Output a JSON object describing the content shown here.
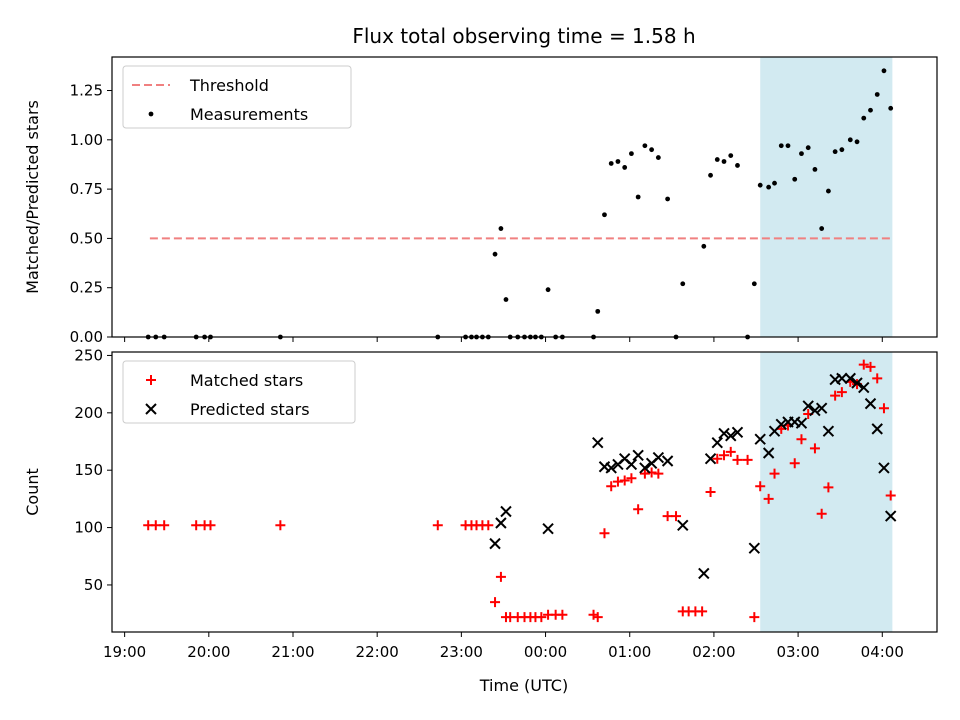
{
  "figure": {
    "title": "Flux total observing time = 1.58 h",
    "xlabel": "Time (UTC)",
    "x_ticks": [
      {
        "value": 19,
        "label": "19:00"
      },
      {
        "value": 20,
        "label": "20:00"
      },
      {
        "value": 21,
        "label": "21:00"
      },
      {
        "value": 22,
        "label": "22:00"
      },
      {
        "value": 23,
        "label": "23:00"
      },
      {
        "value": 24,
        "label": "00:00"
      },
      {
        "value": 25,
        "label": "01:00"
      },
      {
        "value": 26,
        "label": "02:00"
      },
      {
        "value": 27,
        "label": "03:00"
      },
      {
        "value": 28,
        "label": "04:00"
      }
    ],
    "colors": {
      "threshold": "#f08080",
      "highlight": "#add8e6",
      "matched": "#ff0000",
      "predicted": "#000000",
      "measurements": "#000000"
    }
  },
  "chart_data": [
    {
      "type": "scatter",
      "xlabel": "",
      "ylabel": "Matched/Predicted stars",
      "xlim": [
        18.85,
        28.65
      ],
      "ylim": [
        0,
        1.42
      ],
      "y_ticks": [
        {
          "value": 0,
          "label": "0.00"
        },
        {
          "value": 0.25,
          "label": "0.25"
        },
        {
          "value": 0.5,
          "label": "0.50"
        },
        {
          "value": 0.75,
          "label": "0.75"
        },
        {
          "value": 1.0,
          "label": "1.00"
        },
        {
          "value": 1.25,
          "label": "1.25"
        }
      ],
      "highlight_span": [
        26.55,
        28.12
      ],
      "legend": {
        "placement": "upper-left",
        "entries": [
          "Threshold",
          "Measurements"
        ]
      },
      "series": [
        {
          "name": "Threshold",
          "kind": "dashed-line",
          "x": [
            19.3,
            28.12
          ],
          "y": [
            0.5,
            0.5
          ]
        },
        {
          "name": "Measurements",
          "kind": "points",
          "x": [
            19.28,
            19.37,
            19.47,
            19.85,
            19.95,
            20.02,
            20.85,
            22.72,
            23.05,
            23.12,
            23.18,
            23.25,
            23.32,
            23.4,
            23.47,
            23.53,
            23.58,
            23.67,
            23.75,
            23.82,
            23.88,
            23.95,
            24.03,
            24.12,
            24.2,
            24.57,
            24.62,
            24.7,
            24.78,
            24.86,
            24.94,
            25.02,
            25.1,
            25.18,
            25.26,
            25.34,
            25.45,
            25.55,
            25.63,
            25.88,
            25.96,
            26.04,
            26.12,
            26.2,
            26.28,
            26.4,
            26.48,
            26.55,
            26.65,
            26.72,
            26.8,
            26.88,
            26.96,
            27.04,
            27.12,
            27.2,
            27.28,
            27.36,
            27.44,
            27.52,
            27.62,
            27.7,
            27.78,
            27.86,
            27.94,
            28.02,
            28.1
          ],
          "y": [
            0.0,
            0.0,
            0.0,
            0.0,
            0.0,
            0.0,
            0.0,
            0.0,
            0.0,
            0.0,
            0.0,
            0.0,
            0.0,
            0.42,
            0.55,
            0.19,
            0.0,
            0.0,
            0.0,
            0.0,
            0.0,
            0.0,
            0.24,
            0.0,
            0.0,
            0.0,
            0.13,
            0.62,
            0.88,
            0.89,
            0.86,
            0.93,
            0.71,
            0.97,
            0.95,
            0.91,
            0.7,
            0.0,
            0.27,
            0.46,
            0.82,
            0.9,
            0.89,
            0.92,
            0.87,
            0.0,
            0.27,
            0.77,
            0.76,
            0.78,
            0.97,
            0.97,
            0.8,
            0.93,
            0.96,
            0.85,
            0.55,
            0.74,
            0.94,
            0.95,
            1.0,
            0.99,
            1.11,
            1.15,
            1.23,
            1.35,
            1.16
          ]
        }
      ]
    },
    {
      "type": "scatter",
      "xlabel": "Time (UTC)",
      "ylabel": "Count",
      "xlim": [
        18.85,
        28.65
      ],
      "ylim": [
        9,
        253
      ],
      "y_ticks": [
        {
          "value": 50,
          "label": "50"
        },
        {
          "value": 100,
          "label": "100"
        },
        {
          "value": 150,
          "label": "150"
        },
        {
          "value": 200,
          "label": "200"
        },
        {
          "value": 250,
          "label": "250"
        }
      ],
      "highlight_span": [
        26.55,
        28.12
      ],
      "legend": {
        "placement": "upper-left",
        "entries": [
          "Matched stars",
          "Predicted stars"
        ]
      },
      "series": [
        {
          "name": "Matched stars",
          "marker": "plus",
          "x": [
            19.28,
            19.37,
            19.47,
            19.85,
            19.95,
            20.02,
            20.85,
            22.72,
            23.05,
            23.12,
            23.18,
            23.25,
            23.32,
            23.4,
            23.47,
            23.53,
            23.58,
            23.67,
            23.75,
            23.82,
            23.88,
            23.95,
            24.03,
            24.12,
            24.2,
            24.57,
            24.62,
            24.7,
            24.78,
            24.86,
            24.94,
            25.02,
            25.1,
            25.18,
            25.26,
            25.34,
            25.45,
            25.55,
            25.63,
            25.7,
            25.78,
            25.86,
            25.96,
            26.04,
            26.12,
            26.2,
            26.28,
            26.4,
            26.48,
            26.55,
            26.65,
            26.72,
            26.8,
            26.88,
            26.96,
            27.04,
            27.12,
            27.2,
            27.28,
            27.36,
            27.44,
            27.52,
            27.62,
            27.7,
            27.78,
            27.86,
            27.94,
            28.02,
            28.1
          ],
          "y": [
            102,
            102,
            102,
            102,
            102,
            102,
            102,
            102,
            102,
            102,
            102,
            102,
            102,
            35,
            57,
            22,
            22,
            22,
            22,
            22,
            22,
            22,
            24,
            24,
            24,
            24,
            22,
            95,
            136,
            140,
            141,
            143,
            116,
            147,
            148,
            147,
            110,
            110,
            27,
            27,
            27,
            27,
            131,
            160,
            163,
            166,
            159,
            159,
            22,
            136,
            125,
            147,
            186,
            189,
            156,
            177,
            199,
            169,
            112,
            135,
            215,
            218,
            227,
            225,
            242,
            240,
            230,
            204,
            128
          ]
        },
        {
          "name": "Predicted stars",
          "marker": "x",
          "x": [
            23.4,
            23.47,
            23.53,
            24.03,
            24.62,
            24.7,
            24.78,
            24.86,
            24.94,
            25.02,
            25.1,
            25.18,
            25.26,
            25.34,
            25.45,
            25.63,
            25.88,
            25.96,
            26.04,
            26.12,
            26.2,
            26.28,
            26.48,
            26.55,
            26.65,
            26.72,
            26.8,
            26.88,
            26.96,
            27.04,
            27.12,
            27.2,
            27.28,
            27.36,
            27.44,
            27.52,
            27.62,
            27.7,
            27.78,
            27.86,
            27.94,
            28.02,
            28.1
          ],
          "y": [
            86,
            104,
            114,
            99,
            174,
            153,
            152,
            155,
            160,
            155,
            163,
            152,
            156,
            161,
            158,
            102,
            60,
            160,
            174,
            182,
            180,
            183,
            82,
            177,
            165,
            184,
            190,
            192,
            192,
            191,
            206,
            202,
            204,
            184,
            229,
            230,
            230,
            226,
            222,
            208,
            186,
            152,
            110
          ]
        }
      ]
    }
  ]
}
